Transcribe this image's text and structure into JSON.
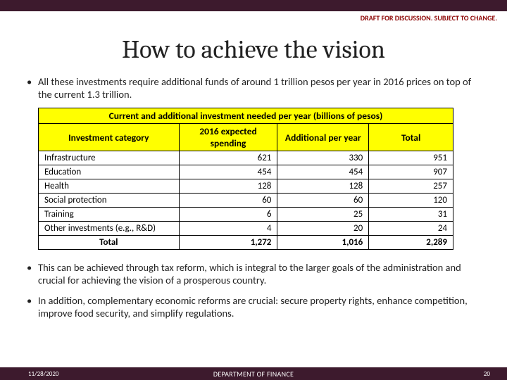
{
  "banner": {
    "draft_label": "DRAFT FOR DISCUSSION. SUBJECT TO CHANGE.",
    "top_bar_color": "#3d1a2d"
  },
  "title": "How to achieve the vision",
  "bullets": {
    "b1": "All these investments require additional funds of around 1 trillion pesos per year in 2016 prices on top of the current 1.3 trillion.",
    "b2": "This can be achieved through tax reform, which is integral to the larger goals of the administration and crucial for achieving the vision of a prosperous country.",
    "b3": "In addition, complementary economic reforms are crucial: secure property rights, enhance competition, improve food security, and simplify regulations."
  },
  "table": {
    "title": "Current and additional investment needed per year (billions of pesos)",
    "header_bg": "#ffff00",
    "border_color": "#000000",
    "columns": {
      "c1": "Investment category",
      "c2": "2016 expected spending",
      "c3": "Additional per year",
      "c4": "Total"
    },
    "rows": [
      {
        "cat": "Infrastructure",
        "v1": "621",
        "v2": "330",
        "v3": "951"
      },
      {
        "cat": "Education",
        "v1": "454",
        "v2": "454",
        "v3": "907"
      },
      {
        "cat": "Health",
        "v1": "128",
        "v2": "128",
        "v3": "257"
      },
      {
        "cat": "Social protection",
        "v1": "60",
        "v2": "60",
        "v3": "120"
      },
      {
        "cat": "Training",
        "v1": "6",
        "v2": "25",
        "v3": "31"
      },
      {
        "cat": "Other investments (e.g., R&D)",
        "v1": "4",
        "v2": "20",
        "v3": "24"
      }
    ],
    "total": {
      "label": "Total",
      "v1": "1,272",
      "v2": "1,016",
      "v3": "2,289"
    }
  },
  "footer": {
    "date": "11/28/2020",
    "org": "DEPARTMENT OF FINANCE",
    "page": "20",
    "bg": "#3d1a2d"
  }
}
